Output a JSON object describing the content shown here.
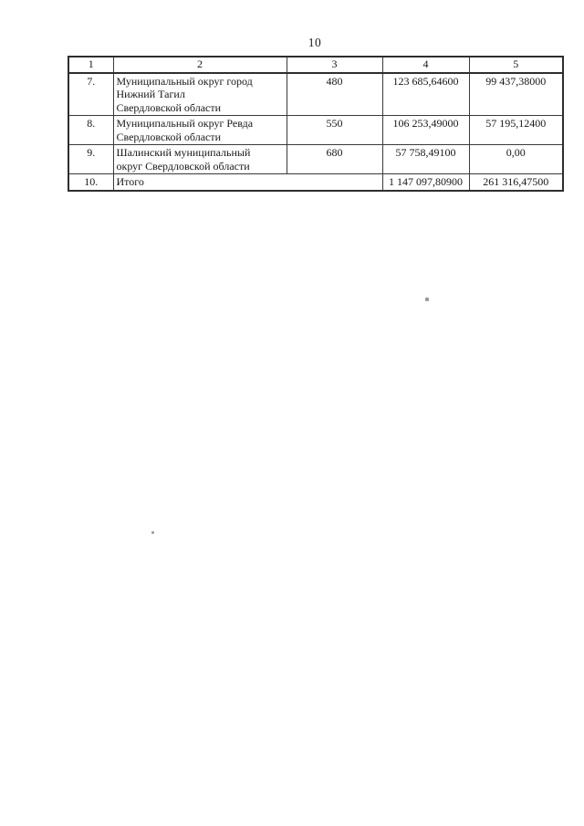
{
  "page": {
    "number": "10"
  },
  "table": {
    "header": [
      "1",
      "2",
      "3",
      "4",
      "5"
    ],
    "rows": [
      {
        "num": "7.",
        "name": "Муниципальный округ город\nНижний Тагил\nСвердловской области",
        "code": "480",
        "col4": "123 685,64600",
        "col5": "99 437,38000"
      },
      {
        "num": "8.",
        "name": "Муниципальный округ Ревда\nСвердловской области",
        "code": "550",
        "col4": "106 253,49000",
        "col5": "57 195,12400"
      },
      {
        "num": "9.",
        "name": "Шалинский муниципальный\nокруг Свердловской области",
        "code": "680",
        "col4": "57 758,49100",
        "col5": "0,00"
      }
    ],
    "total_row": {
      "num": "10.",
      "label": "Итого",
      "col4": "1 147 097,80900",
      "col5": "261 316,47500"
    }
  },
  "colors": {
    "page_background": "#ffffff",
    "text": "#171717",
    "border": "#2e2e2e"
  }
}
